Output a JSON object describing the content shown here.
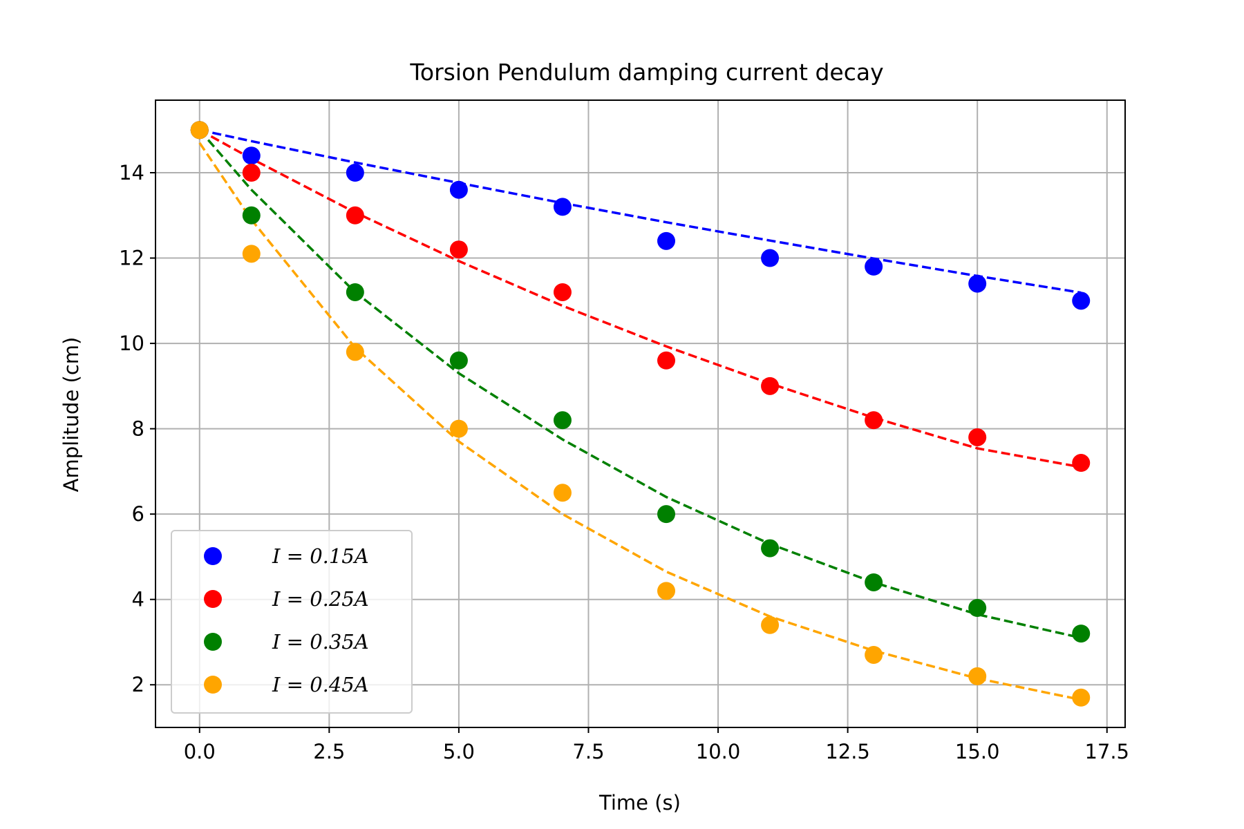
{
  "chart_data": {
    "type": "scatter",
    "title": "Torsion Pendulum damping current decay",
    "xlabel": "Time (s)",
    "ylabel": "Amplitude (cm)",
    "xlim": [
      -0.85,
      17.85
    ],
    "ylim": [
      1.0,
      15.7
    ],
    "xticks": [
      0.0,
      2.5,
      5.0,
      7.5,
      10.0,
      12.5,
      15.0,
      17.5
    ],
    "xtick_labels": [
      "0.0",
      "2.5",
      "5.0",
      "7.5",
      "10.0",
      "12.5",
      "15.0",
      "17.5"
    ],
    "yticks": [
      2,
      4,
      6,
      8,
      10,
      12,
      14
    ],
    "ytick_labels": [
      "2",
      "4",
      "6",
      "8",
      "10",
      "12",
      "14"
    ],
    "grid": true,
    "legend_position": "lower-left",
    "x": [
      0,
      1,
      3,
      5,
      7,
      9,
      11,
      13,
      15,
      17
    ],
    "series": [
      {
        "name": "I = 0.15A",
        "color": "#0000ff",
        "values": [
          15.0,
          14.4,
          14.0,
          13.6,
          13.2,
          12.4,
          12.0,
          11.8,
          11.4,
          11.0
        ],
        "fit": [
          15.0,
          14.74,
          14.24,
          13.76,
          13.29,
          12.84,
          12.41,
          11.99,
          11.58,
          11.19
        ]
      },
      {
        "name": "I = 0.25A",
        "color": "#ff0000",
        "values": [
          15.0,
          14.0,
          13.0,
          12.2,
          11.2,
          9.6,
          9.0,
          8.2,
          7.8,
          7.2
        ],
        "fit": [
          15.0,
          14.33,
          13.07,
          11.93,
          10.88,
          9.93,
          9.06,
          8.26,
          7.54,
          7.1
        ]
      },
      {
        "name": "I = 0.35A",
        "color": "#008000",
        "values": [
          15.0,
          13.0,
          11.2,
          9.6,
          8.2,
          6.0,
          5.2,
          4.4,
          3.8,
          3.2
        ],
        "fit": [
          15.0,
          13.6,
          11.2,
          9.3,
          7.75,
          6.4,
          5.3,
          4.4,
          3.65,
          3.1
        ]
      },
      {
        "name": "I = 0.45A",
        "color": "#ffa500",
        "values": [
          15.0,
          12.1,
          9.8,
          8.0,
          6.5,
          4.2,
          3.4,
          2.7,
          2.2,
          1.7
        ],
        "fit": [
          14.7,
          12.9,
          9.9,
          7.7,
          6.0,
          4.65,
          3.6,
          2.8,
          2.15,
          1.65
        ]
      }
    ]
  }
}
